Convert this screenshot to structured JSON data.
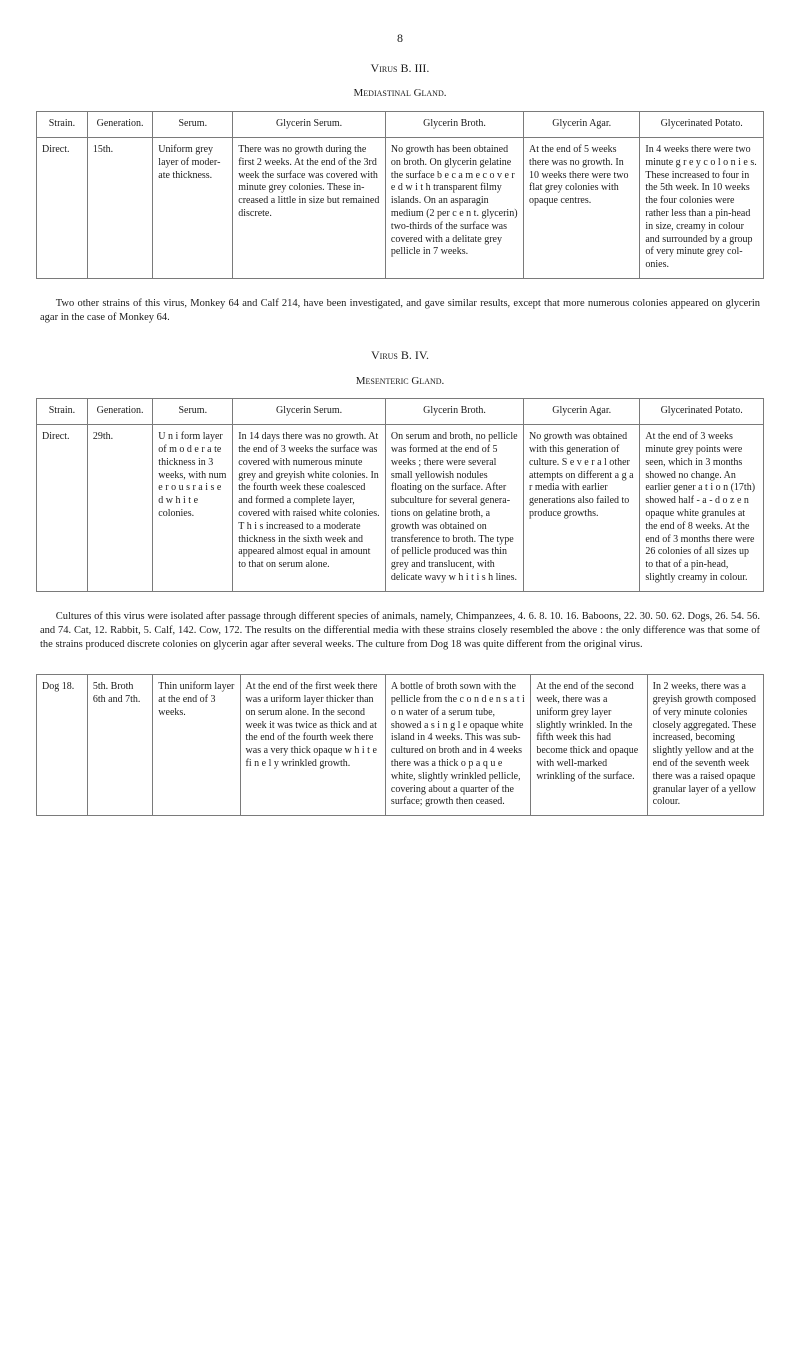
{
  "page_number": "8",
  "section1": {
    "virus_title": "Virus B. III.",
    "gland_title": "Mediastinal Gland.",
    "headers": [
      "Strain.",
      "Generation.",
      "Serum.",
      "Glycerin Serum.",
      "Glycerin Broth.",
      "Glycerin Agar.",
      "Glycerinated Potato."
    ],
    "row": {
      "strain": "Direct.",
      "generation": "15th.",
      "serum": "Uniform grey layer of moder­ate thick­ness.",
      "glycerin_serum": "There was no growth during the first 2 weeks. At the end of the 3rd week the surface was covered with minute grey colo­nies. These in­creased a little in size but remained discrete.",
      "glycerin_broth": "No growth has been obtained on broth. On gly­cerin gelatine the surface b e c a m e c o v e r e d w i t h transparent filmy islands. On an asparagin medium (2 per c e n t. glycerin) two-thirds of the surface was cov­ered with a deli­tate grey pellicle in 7 weeks.",
      "glycerin_agar": "At the end of 5 weeks there was no growth. In 10 weeks there were two flat grey col­onies with opaque centres.",
      "glycerinated_potato": "In 4 weeks there were two minute g r e y c o l o n i e s. These increased to four in the 5th week. In 10 weeks the four colonies were rather less than a pin-head in size, creamy in colour and surrounded by a group of very minute grey col­onies."
    },
    "footer_para": "Two other strains of this virus, Monkey 64 and Calf 214, have been investigated, and gave similar results, except that more numerous colonies appeared on glycerin agar in the case of Monkey 64."
  },
  "section2": {
    "virus_title": "Virus B. IV.",
    "gland_title": "Mesenteric Gland.",
    "headers": [
      "Strain.",
      "Generation.",
      "Serum.",
      "Glycerin Serum.",
      "Glycerin Broth.",
      "Glycerin Agar.",
      "Glycerinated Potato."
    ],
    "row": {
      "strain": "Direct.",
      "generation": "29th.",
      "serum": "U n i form layer of m o d e r a te thickness in 3 weeks, with nu­m e r o u s r a i s e d w h i t e colonies.",
      "glycerin_serum": "In 14 days there was no growth. At the end of 3 weeks the surface was covered with numerous minute grey and greyish white colonies. In the fourth week these coalesced and formed a com­plete layer, covered with raised white colonies. T h i s increased to a moderate thick­ness in the sixth week and appeared almost equal in amount to that on serum alone.",
      "glycerin_broth": "On serum and broth, no pellicle was formed at the end of 5 weeks ; there were several small yellowish nodules floating on the surface. After subculture for several genera­tions on gelatine broth, a growth was obtained on transference to broth. The type of pellicle pro­duced was thin grey and translu­cent, with delicate wavy w h i t i s h lines.",
      "glycerin_agar": "No growth was obtained with this generation of cul­ture. S e v e r a l other attempts on different a g a r media with earlier generations also failed to produce growths.",
      "glycerinated_potato": "At the end of 3 weeks minute grey points were seen, which in 3 months showed no change. An earlier gene­r a t i o n (17th) showed half - a - d o z e n opaque white granules at the end of 8 weeks. At the end of 3 months there were 26 colonies of all sizes up to that of a pin-head, slightly creamy in colour."
    },
    "footer_para": "Cultures of this virus were isolated after passage through different species of animals, namely, Chim­panzees, 4. 6. 8. 10. 16. Baboons, 22. 30. 50. 62. Dogs, 26. 54. 56. and 74. Cat, 12. Rabbit, 5. Calf, 142. Cow, 172. The results on the differential media with these strains closely resembled the above : the only difference was that some of the strains produced discrete colonies on glycerin agar after several weeks. The culture from Dog 18 was quite different from the original virus."
  },
  "section3": {
    "row": {
      "strain": "Dog 18.",
      "generation": "5th. Broth 6th and 7th.",
      "serum": "Thin uni­form layer at the end of 3 weeks.",
      "c1": "At the end of the first week there was a uriform layer thicker than on serum alone. In the second week it was twice as thick and at the end of the fourth week there was a very thick opaque w h i t e fi n e l y wrinkled growth.",
      "c2": "A bottle of broth sown with the pellicle from the c o n d e n s a t i o n water of a serum tube, showed a s i n g l e opaque white island in 4 weeks. This was sub­cultured on broth and in 4 weeks there was a thick o p a q u e white, slightly wrinkled pellicle, covering about a quarter of the surface; growth then ceased.",
      "c3": "At the end of the second week, there was a uniform grey layer slightly wrinkled. In the fifth week this had become thick and opaque with well-marked wrinkling of the surface.",
      "c4": "In 2 weeks, there was a greyish growth composed of very minute colonies closely aggregated. These increased, becom­ing slightly yellow and at the end of the seventh week there was a raised opaque granular layer of a yellow colour."
    }
  }
}
